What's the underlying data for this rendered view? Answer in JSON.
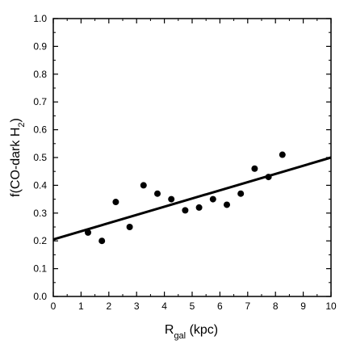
{
  "chart_data": {
    "type": "scatter",
    "title": "",
    "xlabel": {
      "main": "R",
      "sub": "gal",
      "rest": " (kpc)"
    },
    "ylabel": {
      "pre": "f(CO-dark H",
      "sub": "2",
      "post": ")"
    },
    "xlim": [
      0,
      10
    ],
    "ylim": [
      0.0,
      1.0
    ],
    "x_ticks": [
      "0",
      "1",
      "2",
      "3",
      "4",
      "5",
      "6",
      "7",
      "8",
      "9",
      "10"
    ],
    "y_ticks": [
      "0.0",
      "0.1",
      "0.2",
      "0.3",
      "0.4",
      "0.5",
      "0.6",
      "0.7",
      "0.8",
      "0.9",
      "1.0"
    ],
    "grid": false,
    "series": [
      {
        "points": [
          {
            "x": 1.25,
            "y": 0.23
          },
          {
            "x": 1.75,
            "y": 0.2
          },
          {
            "x": 2.25,
            "y": 0.34
          },
          {
            "x": 2.75,
            "y": 0.25
          },
          {
            "x": 3.25,
            "y": 0.4
          },
          {
            "x": 3.75,
            "y": 0.37
          },
          {
            "x": 4.25,
            "y": 0.35
          },
          {
            "x": 4.75,
            "y": 0.31
          },
          {
            "x": 5.25,
            "y": 0.32
          },
          {
            "x": 5.75,
            "y": 0.35
          },
          {
            "x": 6.25,
            "y": 0.33
          },
          {
            "x": 6.75,
            "y": 0.37
          },
          {
            "x": 7.25,
            "y": 0.46
          },
          {
            "x": 7.75,
            "y": 0.43
          },
          {
            "x": 8.25,
            "y": 0.51
          }
        ]
      }
    ],
    "fit_line": {
      "x": [
        0,
        10
      ],
      "y": [
        0.205,
        0.5
      ]
    },
    "colors": {
      "marker": "#000000",
      "line": "#000000",
      "axes": "#000000"
    }
  }
}
